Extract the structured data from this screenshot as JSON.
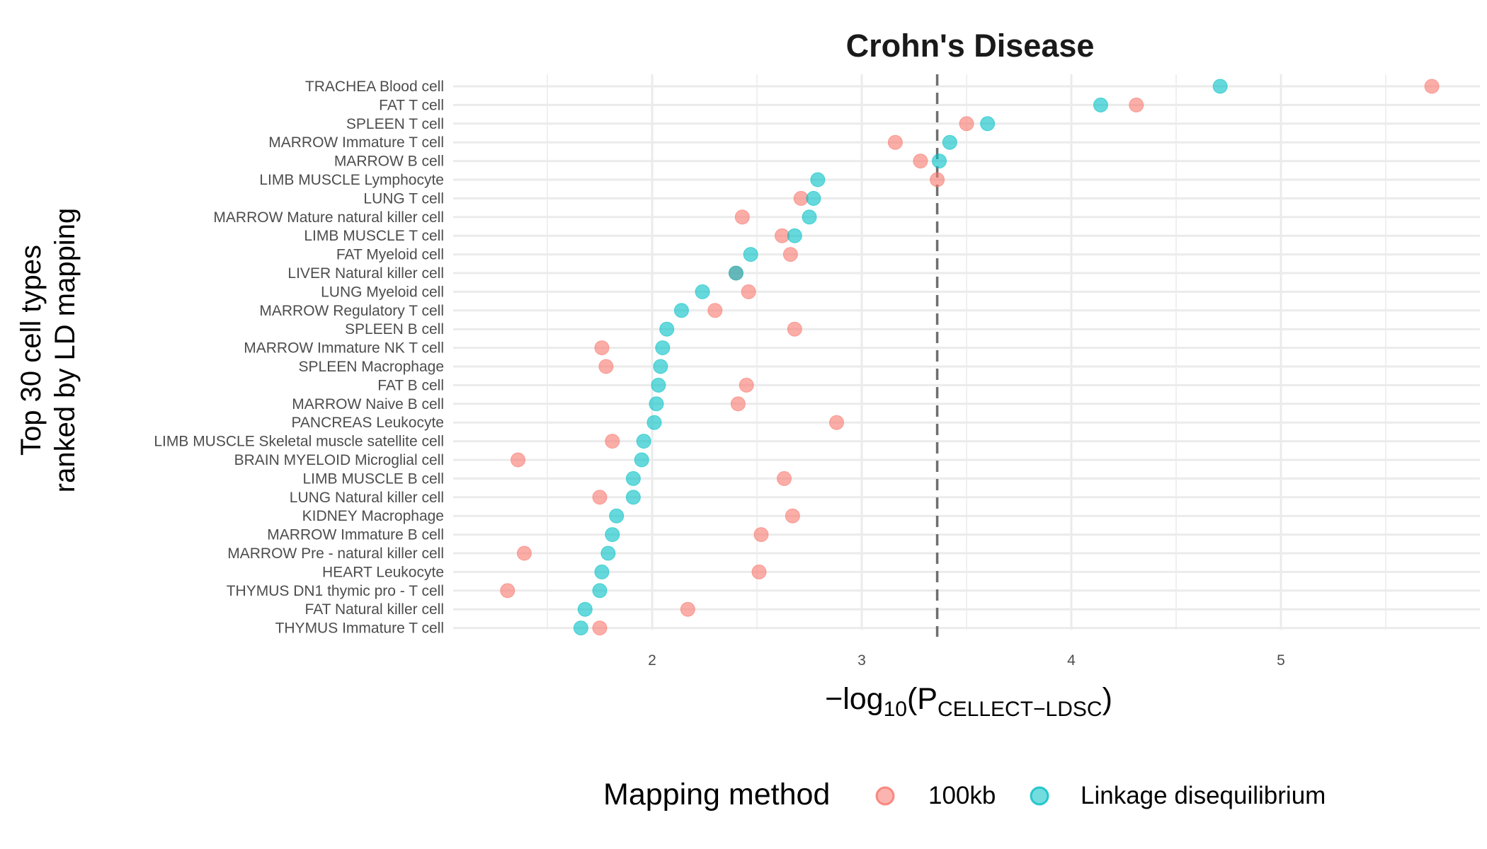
{
  "chart_data": {
    "type": "scatter",
    "title": "Crohn's Disease",
    "ylabel_line1": "Top 30 cell types",
    "ylabel_line2": "ranked by LD mapping",
    "xlabel": {
      "prefix": "−log",
      "sub1": "10",
      "open": "(P",
      "sub2": "CELLECT−LDSC",
      "close": ")"
    },
    "xlim": [
      1.1,
      5.95
    ],
    "xticks": [
      2,
      3,
      4,
      5
    ],
    "threshold": 3.36,
    "categories": [
      "TRACHEA Blood cell",
      "FAT T cell",
      "SPLEEN T cell",
      "MARROW Immature T cell",
      "MARROW B cell",
      "LIMB MUSCLE Lymphocyte",
      "LUNG T cell",
      "MARROW Mature natural killer cell",
      "LIMB MUSCLE T cell",
      "FAT Myeloid cell",
      "LIVER Natural killer cell",
      "LUNG Myeloid cell",
      "MARROW Regulatory T cell",
      "SPLEEN B cell",
      "MARROW Immature NK T cell",
      "SPLEEN Macrophage",
      "FAT B cell",
      "MARROW Naive B cell",
      "PANCREAS Leukocyte",
      "LIMB MUSCLE Skeletal muscle satellite cell",
      "BRAIN MYELOID Microglial cell",
      "LIMB MUSCLE B cell",
      "LUNG Natural killer cell",
      "KIDNEY Macrophage",
      "MARROW Immature B cell",
      "MARROW Pre - natural killer cell",
      "HEART Leukocyte",
      "THYMUS DN1 thymic pro - T cell",
      "FAT Natural killer cell",
      "THYMUS Immature T cell"
    ],
    "series": [
      {
        "name": "100kb",
        "color": "#F8766D",
        "values": [
          5.72,
          4.31,
          3.5,
          3.16,
          3.28,
          3.36,
          2.71,
          2.43,
          2.62,
          2.66,
          2.4,
          2.46,
          2.3,
          2.68,
          1.76,
          1.78,
          2.45,
          2.41,
          2.88,
          1.81,
          1.36,
          2.63,
          1.75,
          2.67,
          2.52,
          1.39,
          2.51,
          1.31,
          2.17,
          1.75
        ]
      },
      {
        "name": "Linkage disequilibrium",
        "color": "#00BFC4",
        "values": [
          4.71,
          4.14,
          3.6,
          3.42,
          3.37,
          2.79,
          2.77,
          2.75,
          2.68,
          2.47,
          2.4,
          2.24,
          2.14,
          2.07,
          2.05,
          2.04,
          2.03,
          2.02,
          2.01,
          1.96,
          1.95,
          1.91,
          1.91,
          1.83,
          1.81,
          1.79,
          1.76,
          1.75,
          1.68,
          1.66
        ]
      }
    ],
    "legend": {
      "title": "Mapping method",
      "position": "bottom"
    }
  }
}
